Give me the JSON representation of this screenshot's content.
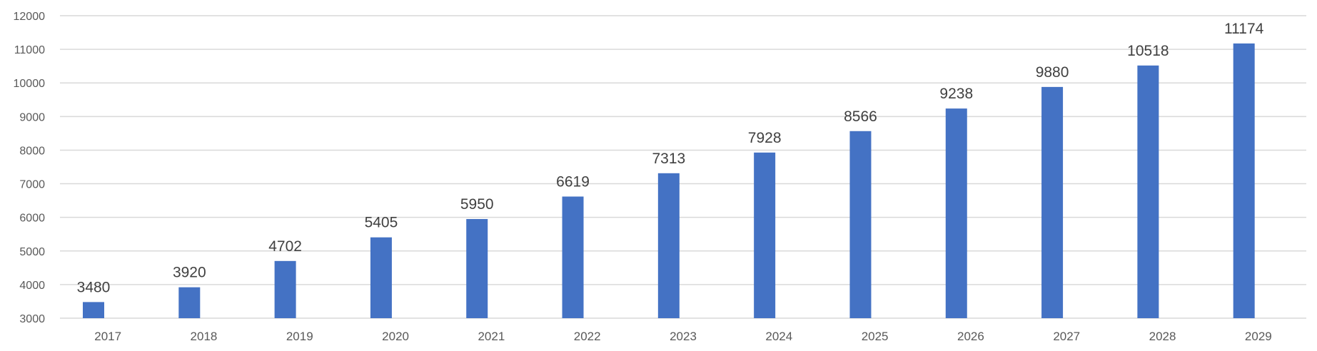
{
  "chart_data": {
    "type": "bar",
    "categories": [
      "2017",
      "2018",
      "2019",
      "2020",
      "2021",
      "2022",
      "2023",
      "2024",
      "2025",
      "2026",
      "2027",
      "2028",
      "2029"
    ],
    "values": [
      3480,
      3920,
      4702,
      5405,
      5950,
      6619,
      7313,
      7928,
      8566,
      9238,
      9880,
      10518,
      11174
    ],
    "ylim": [
      3000,
      12000
    ],
    "yticks": [
      3000,
      4000,
      5000,
      6000,
      7000,
      8000,
      9000,
      10000,
      11000,
      12000
    ],
    "grid": true,
    "data_labels": true,
    "bar_color": "#4472c4",
    "legend": "none"
  }
}
